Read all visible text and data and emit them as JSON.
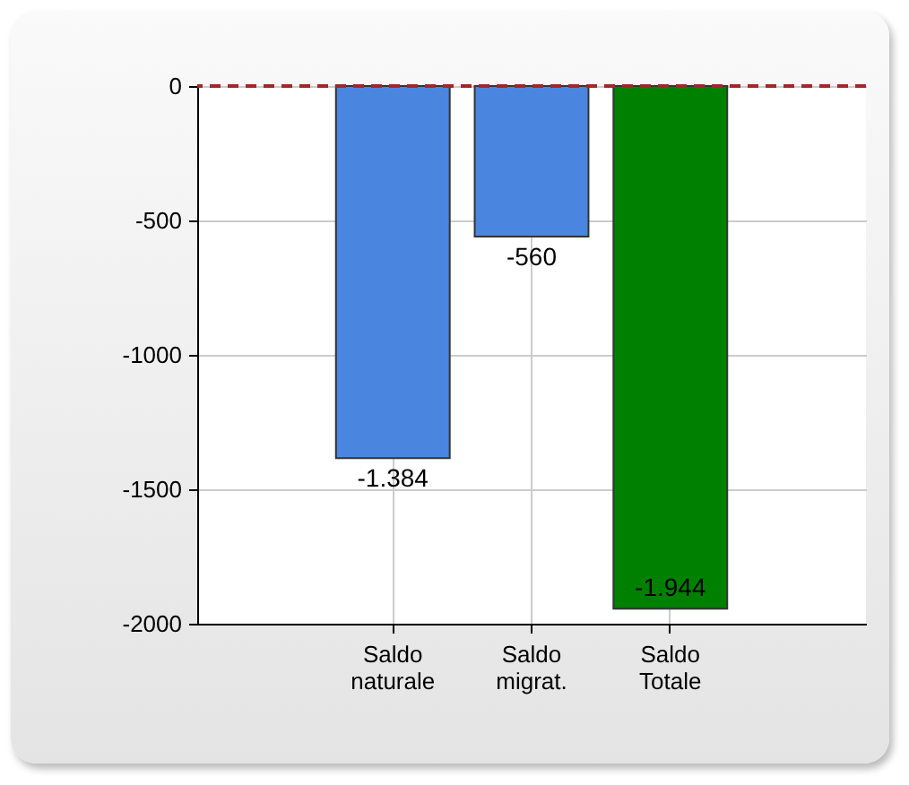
{
  "chart_data": {
    "type": "bar",
    "categories": [
      "Saldo naturale",
      "Saldo migrat.",
      "Saldo Totale"
    ],
    "values": [
      -1384,
      -560,
      -1944
    ],
    "colors": [
      "#4a86e0",
      "#4a86e0",
      "#008000"
    ],
    "value_labels": [
      "-1.384",
      "-560",
      "-1.944"
    ],
    "ylim": [
      -2000,
      0
    ],
    "yticks": [
      0,
      -500,
      -1000,
      -1500,
      -2000
    ],
    "grid": true,
    "ref_lines": [
      {
        "axis": "y",
        "value": 0,
        "color": "#a02828",
        "line_style": "dashed"
      }
    ]
  }
}
